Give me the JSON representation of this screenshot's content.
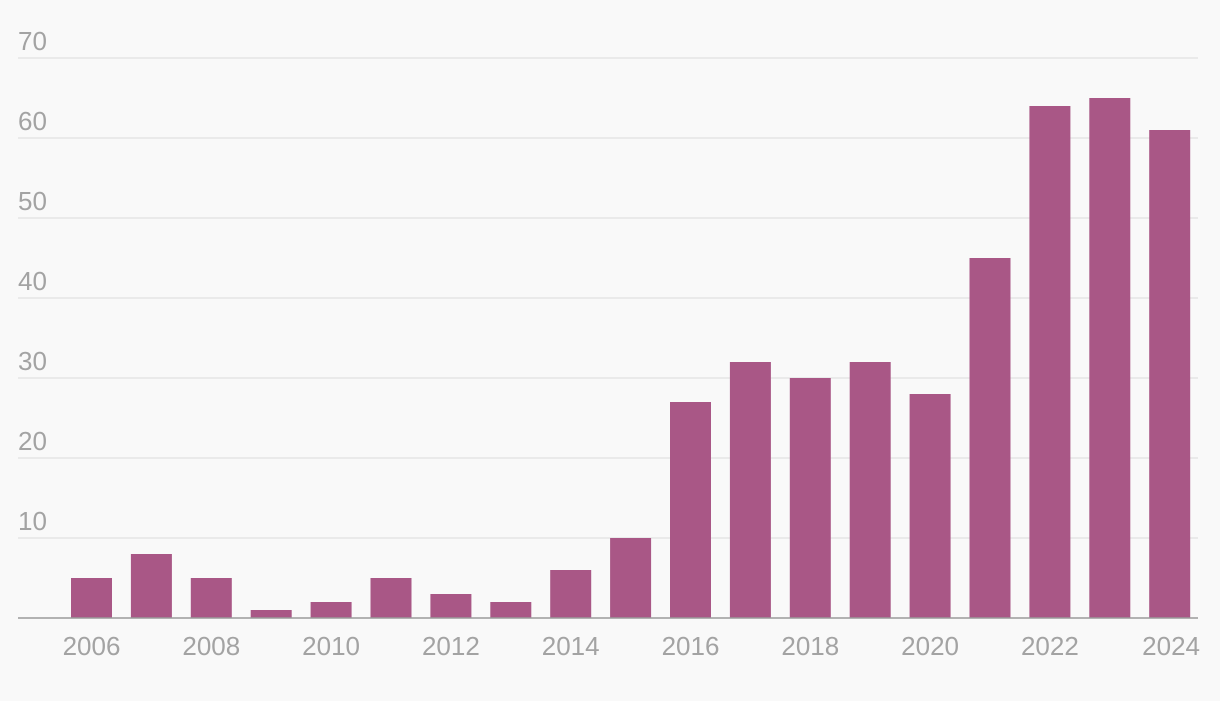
{
  "colors": {
    "bar": "#a95786",
    "background": "#f9f9f9",
    "grid": "#e6e6e6",
    "tick_text": "#a3a3a3",
    "axis": "#9a9a9a"
  },
  "chart_data": {
    "type": "bar",
    "title": "",
    "xlabel": "",
    "ylabel": "",
    "categories": [
      "2006",
      "2007",
      "2008",
      "2009",
      "2010",
      "2011",
      "2012",
      "2013",
      "2014",
      "2015",
      "2016",
      "2017",
      "2018",
      "2019",
      "2020",
      "2021",
      "2022",
      "2023",
      "2024"
    ],
    "values": [
      5,
      8,
      5,
      1,
      2,
      5,
      3,
      2,
      6,
      10,
      27,
      32,
      30,
      32,
      28,
      45,
      64,
      65,
      61
    ],
    "ylim": [
      0,
      70
    ],
    "yticks": [
      "10",
      "20",
      "30",
      "40",
      "50",
      "60",
      "70"
    ],
    "xtick_labels": [
      "2006",
      "2008",
      "2010",
      "2012",
      "2014",
      "2016",
      "2018",
      "2020",
      "2022",
      "2024"
    ],
    "grid": true,
    "legend": "none"
  }
}
